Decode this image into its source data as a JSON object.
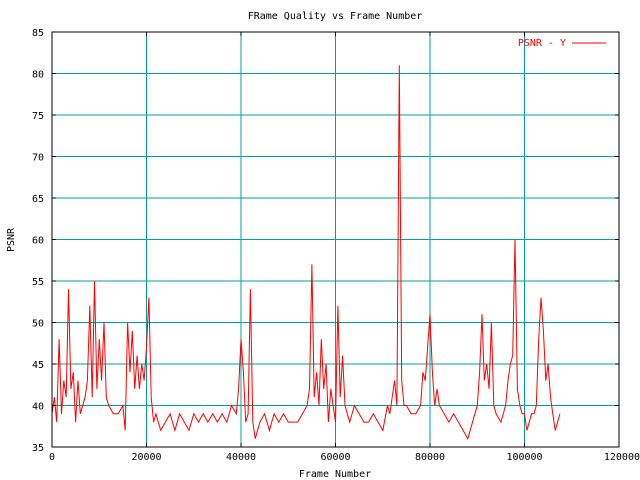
{
  "chart_data": {
    "type": "line",
    "title": "FRame Quality vs Frame Number",
    "xlabel": "Frame Number",
    "ylabel": "PSNR",
    "xlim": [
      0,
      120000
    ],
    "ylim": [
      35,
      85
    ],
    "xticks": [
      0,
      20000,
      40000,
      60000,
      80000,
      100000,
      120000
    ],
    "xtick_labels": [
      "0",
      "20000",
      "40000",
      "60000",
      "80000",
      "100000",
      "120000"
    ],
    "yticks": [
      35,
      40,
      45,
      50,
      55,
      60,
      65,
      70,
      75,
      80,
      85
    ],
    "ytick_labels": [
      "35",
      "40",
      "45",
      "50",
      "55",
      "60",
      "65",
      "70",
      "75",
      "80",
      "85"
    ],
    "grid": true,
    "legend": "top-right",
    "colors": {
      "series": "#ff0000",
      "grid": "#00a0a0",
      "frame": "#000000"
    },
    "series": [
      {
        "name": "PSNR - Y",
        "points": [
          [
            0,
            39
          ],
          [
            500,
            41
          ],
          [
            1000,
            38
          ],
          [
            1500,
            48
          ],
          [
            2000,
            39
          ],
          [
            2500,
            43
          ],
          [
            3000,
            41
          ],
          [
            3500,
            54
          ],
          [
            4000,
            42
          ],
          [
            4500,
            44
          ],
          [
            5000,
            38
          ],
          [
            5500,
            43
          ],
          [
            6000,
            39
          ],
          [
            7000,
            41
          ],
          [
            7500,
            43
          ],
          [
            8000,
            52
          ],
          [
            8500,
            41
          ],
          [
            9000,
            55
          ],
          [
            9500,
            42
          ],
          [
            10000,
            48
          ],
          [
            10500,
            43
          ],
          [
            11000,
            50
          ],
          [
            11500,
            41
          ],
          [
            12000,
            40
          ],
          [
            13000,
            39
          ],
          [
            14000,
            39
          ],
          [
            15000,
            40
          ],
          [
            15500,
            37
          ],
          [
            16000,
            50
          ],
          [
            16500,
            44
          ],
          [
            17000,
            49
          ],
          [
            17500,
            42
          ],
          [
            18000,
            46
          ],
          [
            18500,
            42
          ],
          [
            19000,
            45
          ],
          [
            19500,
            43
          ],
          [
            20000,
            47
          ],
          [
            20500,
            53
          ],
          [
            21000,
            41
          ],
          [
            21500,
            38
          ],
          [
            22000,
            39
          ],
          [
            23000,
            37
          ],
          [
            24000,
            38
          ],
          [
            25000,
            39
          ],
          [
            26000,
            37
          ],
          [
            27000,
            39
          ],
          [
            28000,
            38
          ],
          [
            29000,
            37
          ],
          [
            30000,
            39
          ],
          [
            31000,
            38
          ],
          [
            32000,
            39
          ],
          [
            33000,
            38
          ],
          [
            34000,
            39
          ],
          [
            35000,
            38
          ],
          [
            36000,
            39
          ],
          [
            37000,
            38
          ],
          [
            38000,
            40
          ],
          [
            39000,
            39
          ],
          [
            39500,
            42
          ],
          [
            40000,
            48
          ],
          [
            40500,
            44
          ],
          [
            41000,
            38
          ],
          [
            41500,
            39
          ],
          [
            42000,
            54
          ],
          [
            42500,
            38
          ],
          [
            43000,
            36
          ],
          [
            44000,
            38
          ],
          [
            45000,
            39
          ],
          [
            46000,
            37
          ],
          [
            47000,
            39
          ],
          [
            48000,
            38
          ],
          [
            49000,
            39
          ],
          [
            50000,
            38
          ],
          [
            51000,
            38
          ],
          [
            52000,
            38
          ],
          [
            53000,
            39
          ],
          [
            54000,
            40
          ],
          [
            54500,
            42
          ],
          [
            55000,
            57
          ],
          [
            55500,
            41
          ],
          [
            56000,
            44
          ],
          [
            56500,
            40
          ],
          [
            57000,
            48
          ],
          [
            57500,
            42
          ],
          [
            58000,
            45
          ],
          [
            58500,
            38
          ],
          [
            59000,
            42
          ],
          [
            59500,
            40
          ],
          [
            60000,
            38
          ],
          [
            60500,
            52
          ],
          [
            61000,
            41
          ],
          [
            61500,
            46
          ],
          [
            62000,
            40
          ],
          [
            62500,
            39
          ],
          [
            63000,
            38
          ],
          [
            64000,
            40
          ],
          [
            65000,
            39
          ],
          [
            66000,
            38
          ],
          [
            67000,
            38
          ],
          [
            68000,
            39
          ],
          [
            69000,
            38
          ],
          [
            70000,
            37
          ],
          [
            71000,
            40
          ],
          [
            71500,
            39
          ],
          [
            72000,
            41
          ],
          [
            72500,
            43
          ],
          [
            73000,
            40
          ],
          [
            73500,
            81
          ],
          [
            74000,
            43
          ],
          [
            74500,
            40
          ],
          [
            75000,
            40
          ],
          [
            76000,
            39
          ],
          [
            77000,
            39
          ],
          [
            78000,
            40
          ],
          [
            78500,
            44
          ],
          [
            79000,
            43
          ],
          [
            79500,
            47
          ],
          [
            80000,
            51
          ],
          [
            80500,
            44
          ],
          [
            81000,
            40
          ],
          [
            81500,
            42
          ],
          [
            82000,
            40
          ],
          [
            83000,
            39
          ],
          [
            84000,
            38
          ],
          [
            85000,
            39
          ],
          [
            86000,
            38
          ],
          [
            87000,
            37
          ],
          [
            88000,
            36
          ],
          [
            89000,
            38
          ],
          [
            90000,
            40
          ],
          [
            90500,
            44
          ],
          [
            91000,
            51
          ],
          [
            91500,
            43
          ],
          [
            92000,
            45
          ],
          [
            92500,
            42
          ],
          [
            93000,
            50
          ],
          [
            93500,
            40
          ],
          [
            94000,
            39
          ],
          [
            95000,
            38
          ],
          [
            96000,
            40
          ],
          [
            96500,
            43
          ],
          [
            97000,
            45
          ],
          [
            97500,
            46
          ],
          [
            98000,
            60
          ],
          [
            98500,
            42
          ],
          [
            99000,
            40
          ],
          [
            99500,
            39
          ],
          [
            100000,
            39
          ],
          [
            100500,
            37
          ],
          [
            101000,
            38
          ],
          [
            101500,
            39
          ],
          [
            102000,
            39
          ],
          [
            102500,
            40
          ],
          [
            103000,
            48
          ],
          [
            103500,
            53
          ],
          [
            104000,
            49
          ],
          [
            104500,
            43
          ],
          [
            105000,
            45
          ],
          [
            105500,
            41
          ],
          [
            106000,
            39
          ],
          [
            106500,
            37
          ],
          [
            107000,
            38
          ],
          [
            107500,
            39
          ]
        ]
      }
    ]
  }
}
